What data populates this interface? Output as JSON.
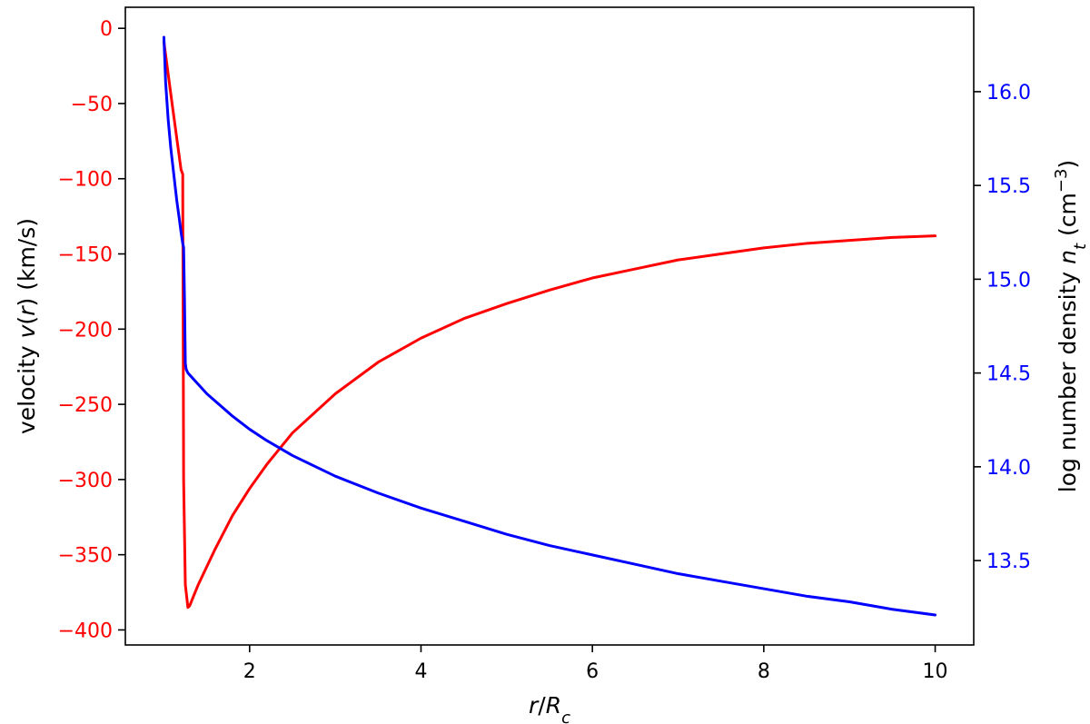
{
  "chart_data": {
    "type": "line",
    "xlabel": "r/Rc",
    "ylabel_left": "velocity v(r) (km/s)",
    "ylabel_right": "log number density nt (cm−3)",
    "xlim": [
      0.55,
      10.45
    ],
    "ylim_left": [
      -410,
      14
    ],
    "ylim_right": [
      13.05,
      16.45
    ],
    "x_ticks": [
      2,
      4,
      6,
      8,
      10
    ],
    "x_tick_labels": [
      "2",
      "4",
      "6",
      "8",
      "10"
    ],
    "y_left_ticks": [
      0,
      -50,
      -100,
      -150,
      -200,
      -250,
      -300,
      -350,
      -400
    ],
    "y_left_tick_labels": [
      "0",
      "−50",
      "−100",
      "−150",
      "−200",
      "−250",
      "−300",
      "−350",
      "−400"
    ],
    "y_right_ticks": [
      13.5,
      14.0,
      14.5,
      15.0,
      15.5,
      16.0
    ],
    "y_right_tick_labels": [
      "13.5",
      "14.0",
      "14.5",
      "15.0",
      "15.5",
      "16.0"
    ],
    "left_axis_color": "#ff0000",
    "right_axis_color": "#0000ff",
    "grid": false,
    "series": [
      {
        "axis": "left",
        "color": "#ff0000",
        "x": [
          1.0,
          1.1,
          1.2,
          1.22,
          1.22,
          1.225,
          1.23,
          1.25,
          1.28,
          1.3,
          1.35,
          1.4,
          1.5,
          1.6,
          1.7,
          1.8,
          2.0,
          2.2,
          2.5,
          3.0,
          3.5,
          4.0,
          4.5,
          5.0,
          5.5,
          6.0,
          6.5,
          7.0,
          7.5,
          8.0,
          8.5,
          9.0,
          9.5,
          10.0
        ],
        "y": [
          -9,
          -52,
          -94,
          -97,
          -110,
          -200,
          -300,
          -370,
          -385,
          -384,
          -377,
          -370,
          -358,
          -346,
          -335,
          -324,
          -306,
          -290,
          -269,
          -243,
          -222,
          -206,
          -193,
          -183,
          -174,
          -166,
          -160,
          -154,
          -150,
          -146,
          -143,
          -141,
          -139,
          -138
        ]
      },
      {
        "axis": "right",
        "color": "#0000ff",
        "x": [
          1.0,
          1.02,
          1.05,
          1.08,
          1.1,
          1.13,
          1.15,
          1.18,
          1.2,
          1.22,
          1.23,
          1.24,
          1.25,
          1.26,
          1.28,
          1.3,
          1.4,
          1.5,
          1.6,
          1.8,
          2.0,
          2.2,
          2.5,
          3.0,
          3.5,
          4.0,
          4.5,
          5.0,
          5.5,
          6.0,
          6.5,
          7.0,
          7.5,
          8.0,
          8.5,
          9.0,
          9.5,
          10.0
        ],
        "y": [
          16.29,
          16.05,
          15.85,
          15.7,
          15.62,
          15.5,
          15.42,
          15.32,
          15.25,
          15.19,
          15.17,
          14.9,
          14.55,
          14.52,
          14.5,
          14.49,
          14.44,
          14.39,
          14.35,
          14.27,
          14.2,
          14.14,
          14.06,
          13.95,
          13.86,
          13.78,
          13.71,
          13.64,
          13.58,
          13.53,
          13.48,
          13.43,
          13.39,
          13.35,
          13.31,
          13.28,
          13.24,
          13.21
        ]
      }
    ]
  }
}
